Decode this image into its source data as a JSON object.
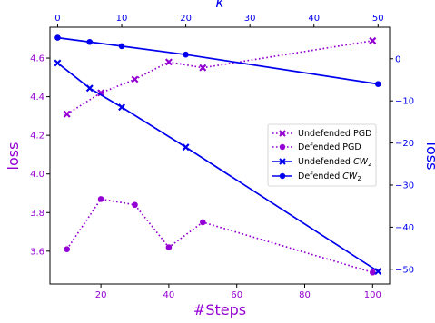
{
  "chart_data": {
    "type": "line",
    "xlabel": "#Steps",
    "x2label": "κ",
    "ylabel_left": "loss",
    "ylabel_right": "loss",
    "xlim": [
      5,
      105
    ],
    "x2lim": [
      -1.2,
      51.8
    ],
    "ylim_left": [
      3.43,
      4.76
    ],
    "ylim_right": [
      -53.5,
      7.5
    ],
    "x_ticks": [
      20,
      40,
      60,
      80,
      100
    ],
    "x2_ticks": [
      0,
      10,
      20,
      30,
      40,
      50
    ],
    "y_left_ticks": [
      "3.6",
      "3.8",
      "4.0",
      "4.2",
      "4.4",
      "4.6"
    ],
    "y_right_ticks": [
      0,
      -10,
      -20,
      -30,
      -40,
      -50
    ],
    "legend_position": "center-right",
    "colors": {
      "pgd": "#9400d3",
      "cw": "#0000ee",
      "left_axis_text": "#9400d3",
      "right_axis_text": "#0000ee"
    },
    "series": [
      {
        "name": "Undefended PGD",
        "axis": "left-bottom",
        "style": "dotted",
        "marker": "x",
        "color": "#9400d3",
        "x": [
          10,
          20,
          30,
          40,
          50,
          100
        ],
        "values": [
          4.31,
          4.42,
          4.49,
          4.58,
          4.55,
          4.69
        ]
      },
      {
        "name": "Defended PGD",
        "axis": "left-bottom",
        "style": "dotted",
        "marker": "o",
        "color": "#9400d3",
        "x": [
          10,
          20,
          30,
          40,
          50,
          100
        ],
        "values": [
          3.61,
          3.87,
          3.84,
          3.62,
          3.75,
          3.49
        ]
      },
      {
        "name": "Undefended CW_2",
        "axis": "right-top",
        "style": "solid",
        "marker": "x",
        "color": "#0000ee",
        "x": [
          0,
          5,
          10,
          20,
          50
        ],
        "values": [
          -1,
          -7,
          -11.5,
          -21,
          -50.5
        ]
      },
      {
        "name": "Defended CW_2",
        "axis": "right-top",
        "style": "solid",
        "marker": "o",
        "color": "#0000ee",
        "x": [
          0,
          5,
          10,
          20,
          50
        ],
        "values": [
          5,
          4,
          3,
          1,
          -6
        ]
      }
    ]
  }
}
